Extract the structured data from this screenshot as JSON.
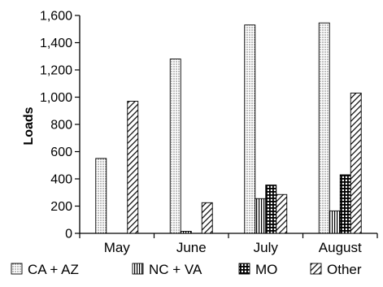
{
  "chart_data": {
    "type": "bar",
    "title": "",
    "xlabel": "",
    "ylabel": "Loads",
    "ylim": [
      0,
      1600
    ],
    "yticks": [
      0,
      200,
      400,
      600,
      800,
      1000,
      1200,
      1400,
      1600
    ],
    "ytick_labels": [
      "0",
      "200",
      "400",
      "600",
      "800",
      "1,000",
      "1,200",
      "1,400",
      "1,600"
    ],
    "categories": [
      "May",
      "June",
      "July",
      "August"
    ],
    "grid": false,
    "legend_position": "bottom",
    "series": [
      {
        "name": "CA + AZ",
        "pattern": "dots",
        "values": [
          550,
          1280,
          1530,
          1545
        ]
      },
      {
        "name": "NC + VA",
        "pattern": "vertical-lines",
        "values": [
          0,
          15,
          255,
          165
        ]
      },
      {
        "name": "MO",
        "pattern": "checkered",
        "values": [
          0,
          0,
          355,
          430
        ]
      },
      {
        "name": "Other",
        "pattern": "diagonal-lines",
        "values": [
          970,
          225,
          285,
          1030
        ]
      }
    ]
  }
}
